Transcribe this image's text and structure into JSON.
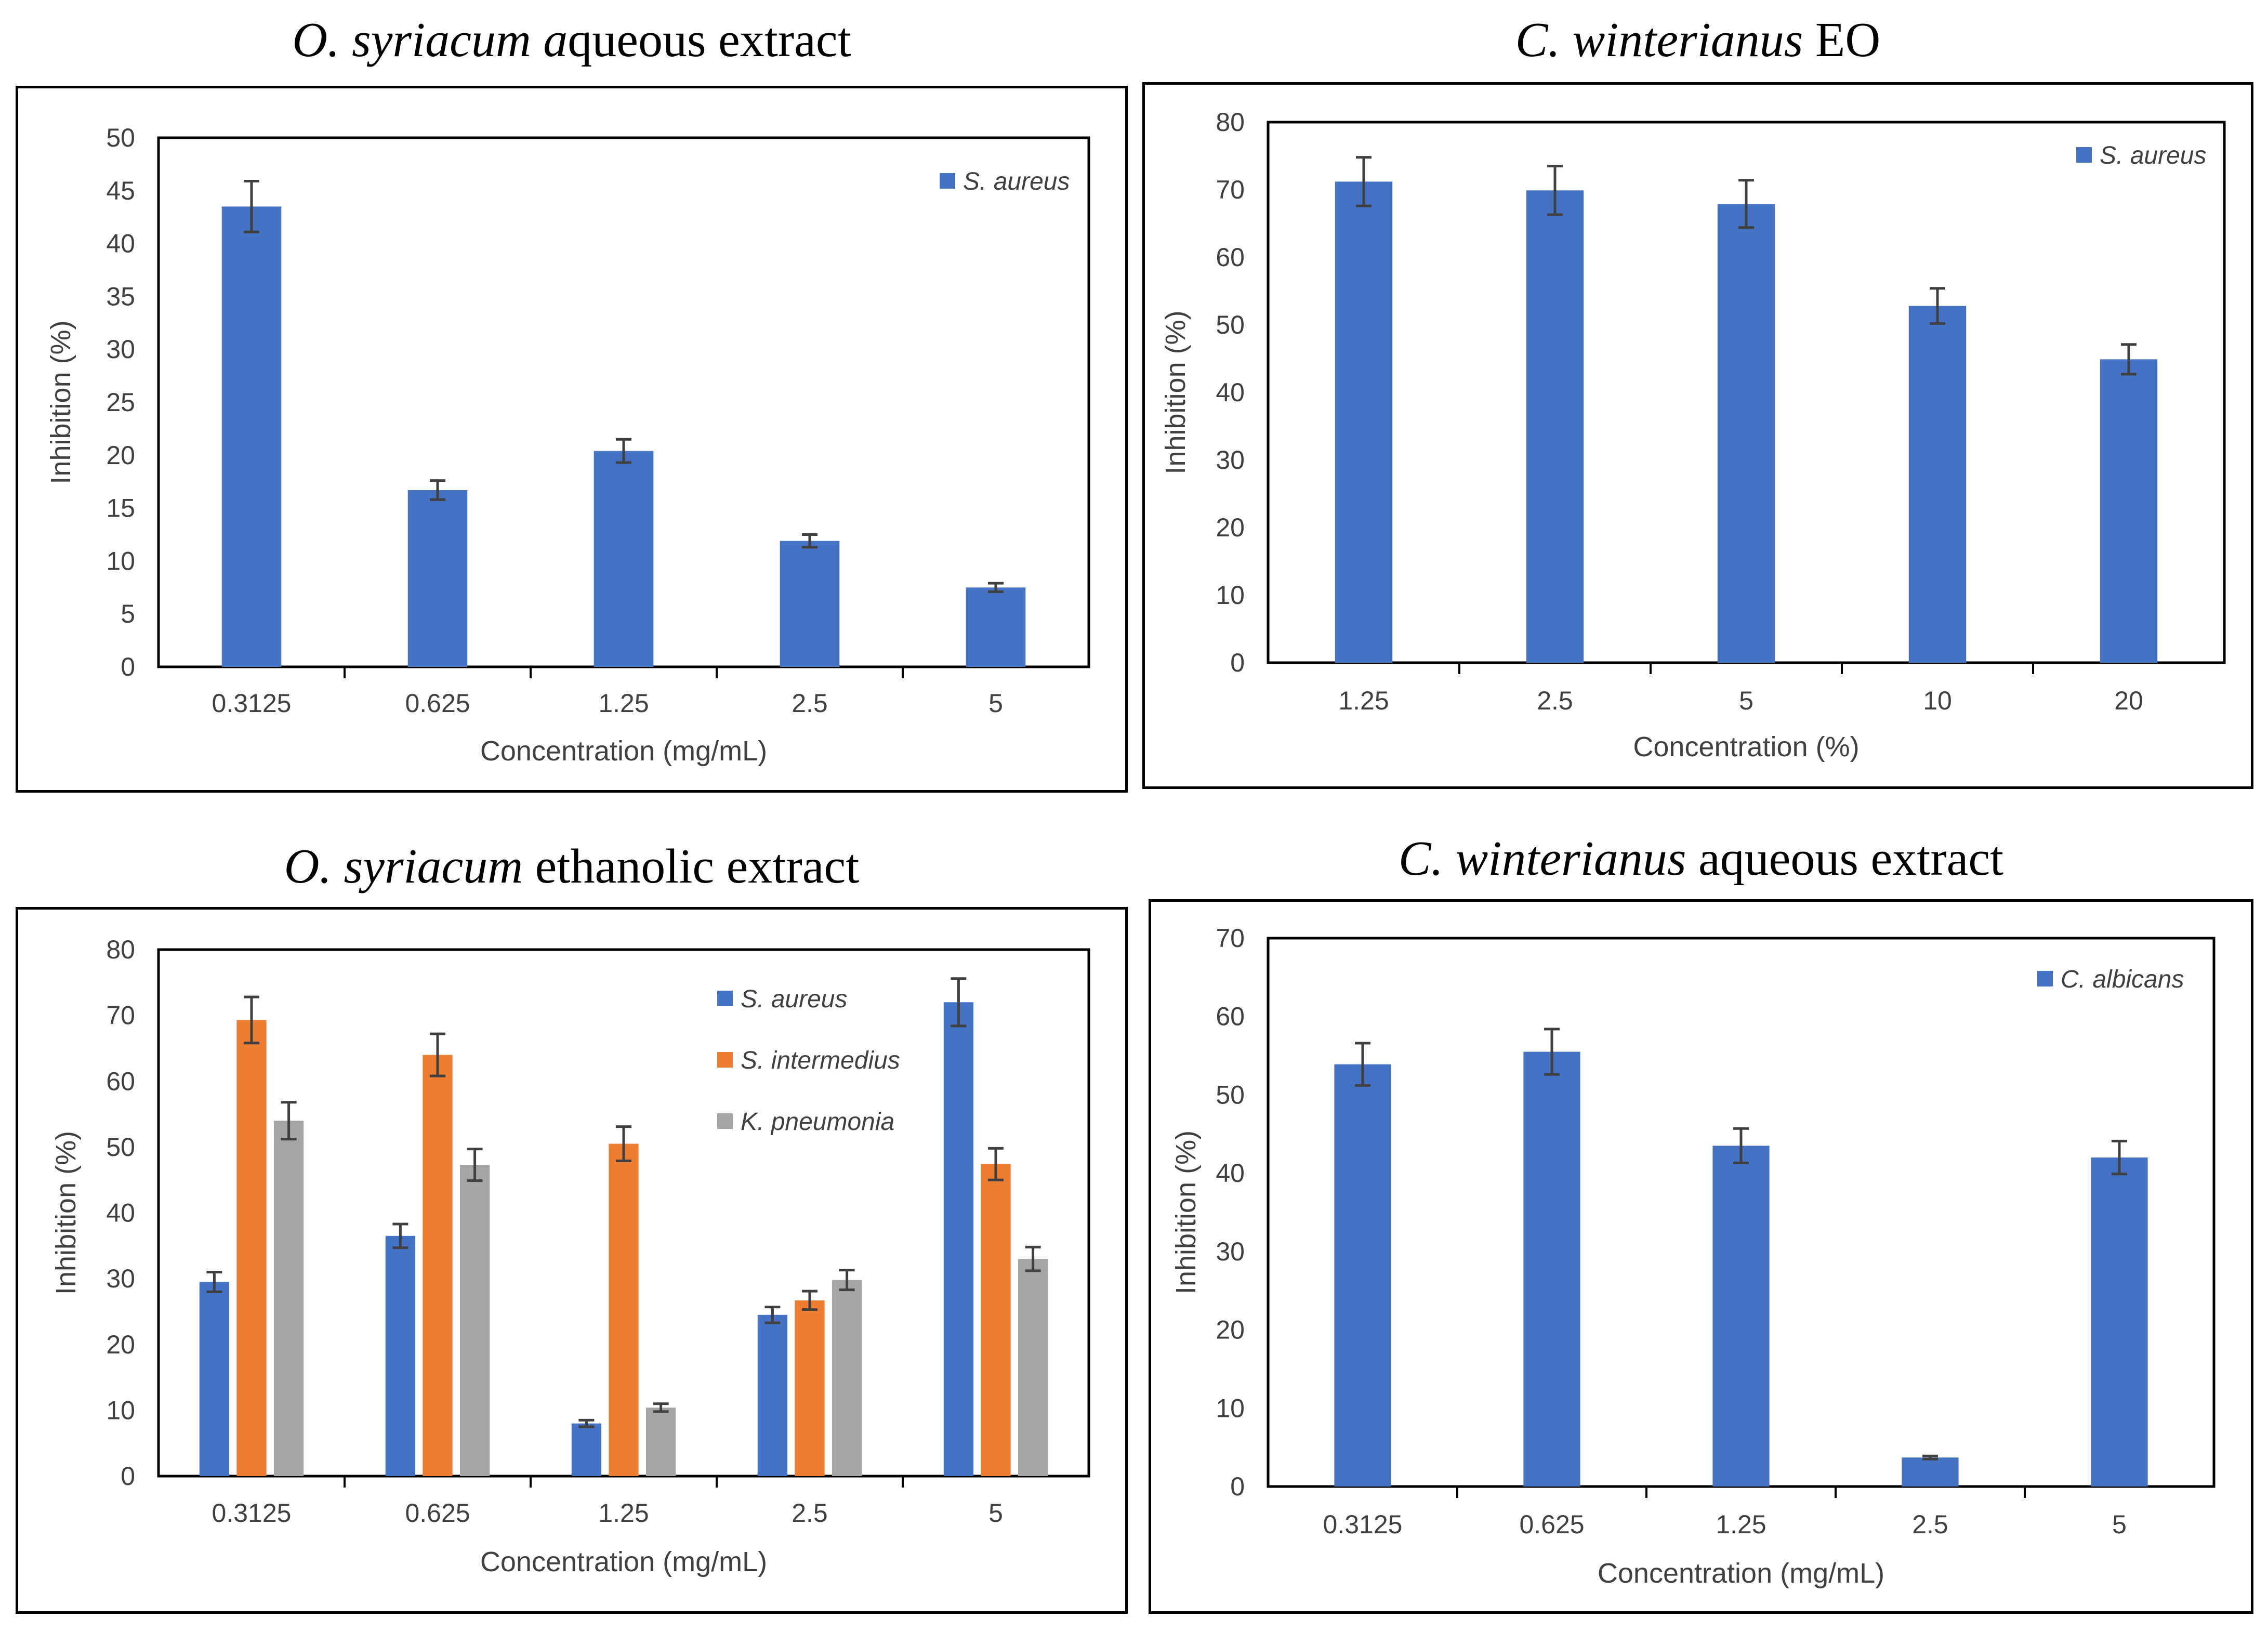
{
  "colors": {
    "blue": "#4472c4",
    "orange": "#ed7d31",
    "gray": "#a5a5a5",
    "axis": "#000000",
    "text": "#404040",
    "error_bar": "#404040"
  },
  "chart_data": [
    {
      "type": "bar",
      "title": "O. syriacum aqueous extract",
      "title_italic": "O. syriacum a",
      "title_rest": "queous extract",
      "xlabel": "Concentration (mg/mL)",
      "ylabel": "Inhibition (%)",
      "ylim": [
        0,
        50
      ],
      "yticks": [
        0,
        5,
        10,
        15,
        20,
        25,
        30,
        35,
        40,
        45,
        50
      ],
      "categories": [
        "0.3125",
        "0.625",
        "1.25",
        "2.5",
        "5"
      ],
      "legend_position": "top-right",
      "series": [
        {
          "name": "S. aureus",
          "color": "blue",
          "values": [
            43.5,
            16.7,
            20.4,
            11.9,
            7.5
          ],
          "errors": [
            2.4,
            0.9,
            1.1,
            0.6,
            0.4
          ]
        }
      ]
    },
    {
      "type": "bar",
      "title": "C. winterianus EO",
      "title_italic": "C. winterianus",
      "title_rest": " EO",
      "xlabel": "Concentration (%)",
      "ylabel": "Inhibition (%)",
      "ylim": [
        0,
        80
      ],
      "yticks": [
        0,
        10,
        20,
        30,
        40,
        50,
        60,
        70,
        80
      ],
      "categories": [
        "1.25",
        "2.5",
        "5",
        "10",
        "20"
      ],
      "legend_position": "top-right",
      "series": [
        {
          "name": "S. aureus",
          "color": "blue",
          "values": [
            71.2,
            69.9,
            67.9,
            52.8,
            44.9
          ],
          "errors": [
            3.6,
            3.6,
            3.5,
            2.6,
            2.2
          ]
        }
      ]
    },
    {
      "type": "bar",
      "title": "O. syriacum ethanolic extract",
      "title_italic": "O. syriacum",
      "title_rest": " ethanolic extract",
      "xlabel": "Concentration (mg/mL)",
      "ylabel": "Inhibition (%)",
      "ylim": [
        0,
        80
      ],
      "yticks": [
        0,
        10,
        20,
        30,
        40,
        50,
        60,
        70,
        80
      ],
      "categories": [
        "0.3125",
        "0.625",
        "1.25",
        "2.5",
        "5"
      ],
      "legend_position": "top-right",
      "series": [
        {
          "name": "S. aureus",
          "color": "blue",
          "values": [
            29.5,
            36.5,
            8.0,
            24.5,
            72.0
          ],
          "errors": [
            1.5,
            1.8,
            0.5,
            1.2,
            3.6
          ]
        },
        {
          "name": "S. intermedius",
          "color": "orange",
          "values": [
            69.3,
            64.0,
            50.5,
            26.7,
            47.4
          ],
          "errors": [
            3.5,
            3.2,
            2.6,
            1.4,
            2.4
          ]
        },
        {
          "name": "K. pneumonia",
          "color": "gray",
          "values": [
            54.0,
            47.3,
            10.4,
            29.8,
            33.0
          ],
          "errors": [
            2.8,
            2.4,
            0.6,
            1.5,
            1.8
          ]
        }
      ]
    },
    {
      "type": "bar",
      "title": "C. winterianus aqueous extract",
      "title_italic": "C. winterianus",
      "title_rest": " aqueous extract",
      "xlabel": "Concentration (mg/mL)",
      "ylabel": "Inhibition (%)",
      "ylim": [
        0,
        70
      ],
      "yticks": [
        0,
        10,
        20,
        30,
        40,
        50,
        60,
        70
      ],
      "categories": [
        "0.3125",
        "0.625",
        "1.25",
        "2.5",
        "5"
      ],
      "legend_position": "top-right",
      "series": [
        {
          "name": "C. albicans",
          "color": "blue",
          "values": [
            53.9,
            55.5,
            43.5,
            3.7,
            42.0
          ],
          "errors": [
            2.7,
            2.9,
            2.2,
            0.2,
            2.1
          ]
        }
      ]
    }
  ]
}
